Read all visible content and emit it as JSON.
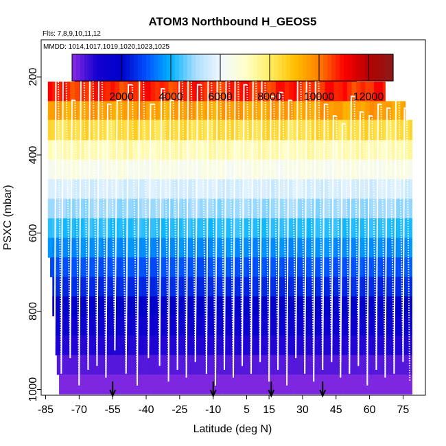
{
  "chart_data": {
    "type": "heatmap",
    "title": "ATOM3 Northbound H_GEOS5",
    "note_flights": "Flts: 7,8,9,10,11,12",
    "note_dates": "MMDD: 1014,1017,1019,1020,1023,1025",
    "xlabel": "Latitude (deg N)",
    "ylabel": "PSXC (mbar)",
    "xlim": [
      -87,
      85
    ],
    "ylim": [
      1015,
      105
    ],
    "x_ticks": [
      -85,
      -70,
      -55,
      -40,
      -25,
      -10,
      5,
      15,
      30,
      45,
      60,
      75
    ],
    "y_ticks": [
      200,
      400,
      600,
      800,
      1000
    ],
    "colorbar": {
      "range": [
        0,
        13000
      ],
      "ticks": [
        2000,
        4000,
        6000,
        8000,
        10000,
        12000
      ],
      "boundaries": [
        2000,
        4000,
        6000,
        8000,
        10000,
        12000
      ],
      "colors": [
        "#8a2be2",
        "#1400d2",
        "#0000c8",
        "#0050ff",
        "#00b4ff",
        "#aaddff",
        "#f0f8ff",
        "#ffffcc",
        "#ffee66",
        "#ffc000",
        "#ff8000",
        "#ff0000",
        "#b40000",
        "#8b1a1a"
      ]
    },
    "pressure_bands": [
      {
        "p_top": 170,
        "p_bot": 212,
        "lat_start": -72,
        "lat_end": 54,
        "height_m": 12300
      },
      {
        "p_top": 212,
        "p_bot": 262,
        "lat_start": -84,
        "lat_end": 67,
        "height_m": 10700
      },
      {
        "p_top": 262,
        "p_bot": 310,
        "lat_start": -84,
        "lat_end": 76,
        "height_m": 9500
      },
      {
        "p_top": 310,
        "p_bot": 362,
        "lat_start": -84,
        "lat_end": 79,
        "height_m": 8400
      },
      {
        "p_top": 362,
        "p_bot": 412,
        "lat_start": -84,
        "lat_end": 79,
        "height_m": 7300
      },
      {
        "p_top": 412,
        "p_bot": 462,
        "lat_start": -84,
        "lat_end": 79,
        "height_m": 6500
      },
      {
        "p_top": 462,
        "p_bot": 512,
        "lat_start": -84,
        "lat_end": 79,
        "height_m": 5600
      },
      {
        "p_top": 512,
        "p_bot": 562,
        "lat_start": -84,
        "lat_end": 79,
        "height_m": 4900
      },
      {
        "p_top": 562,
        "p_bot": 612,
        "lat_start": -84,
        "lat_end": 79,
        "height_m": 4200
      },
      {
        "p_top": 612,
        "p_bot": 662,
        "lat_start": -84,
        "lat_end": 79,
        "height_m": 3600
      },
      {
        "p_top": 662,
        "p_bot": 712,
        "lat_start": -83,
        "lat_end": 79,
        "height_m": 3000
      },
      {
        "p_top": 712,
        "p_bot": 762,
        "lat_start": -82,
        "lat_end": 79,
        "height_m": 2500
      },
      {
        "p_top": 762,
        "p_bot": 812,
        "lat_start": -82,
        "lat_end": 79,
        "height_m": 1900
      },
      {
        "p_top": 812,
        "p_bot": 862,
        "lat_start": -81,
        "lat_end": 79,
        "height_m": 1400
      },
      {
        "p_top": 862,
        "p_bot": 912,
        "lat_start": -81,
        "lat_end": 79,
        "height_m": 900
      },
      {
        "p_top": 912,
        "p_bot": 962,
        "lat_start": -80,
        "lat_end": 79,
        "height_m": 450
      },
      {
        "p_top": 962,
        "p_bot": 1012,
        "lat_start": -79,
        "lat_end": 79,
        "height_m": 100
      }
    ],
    "flight_track": {
      "turn_latitudes": [
        -81,
        -78,
        -74,
        -70,
        -66,
        -62,
        -58,
        -54,
        -49,
        -44,
        -39,
        -34,
        -30,
        -26,
        -22,
        -18,
        -13,
        -9,
        -5,
        -1,
        3,
        7,
        11,
        15,
        19,
        23,
        27,
        31,
        35,
        39,
        43,
        47,
        51,
        55,
        59,
        63,
        67,
        71,
        75,
        78
      ],
      "top_pressures": [
        200,
        210,
        260,
        190,
        180,
        200,
        270,
        260,
        220,
        200,
        270,
        230,
        260,
        210,
        200,
        220,
        190,
        200,
        210,
        200,
        220,
        210,
        190,
        250,
        240,
        260,
        200,
        190,
        210,
        270,
        300,
        320,
        250,
        290,
        300,
        270,
        280,
        260,
        280,
        300
      ],
      "bottom_pressures": [
        980,
        960,
        920,
        990,
        950,
        940,
        970,
        900,
        960,
        990,
        920,
        940,
        980,
        950,
        970,
        930,
        960,
        990,
        950,
        970,
        940,
        960,
        930,
        980,
        950,
        990,
        920,
        960,
        980,
        950,
        930,
        970,
        960,
        940,
        990,
        950,
        970,
        960,
        930,
        980
      ]
    },
    "arrows_lat": [
      -55,
      -10,
      16,
      39
    ]
  }
}
